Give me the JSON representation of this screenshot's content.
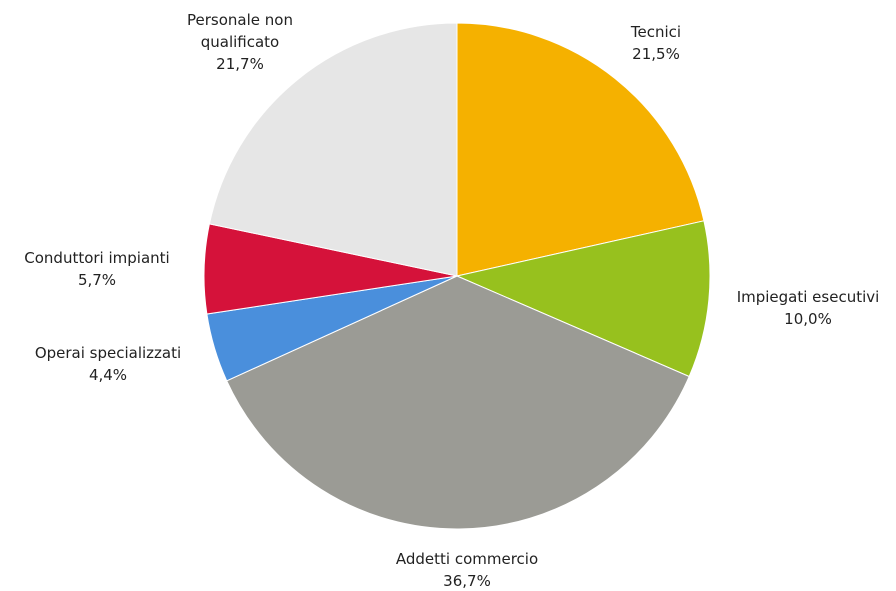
{
  "chart_data": {
    "type": "pie",
    "start_angle": "12-o-clock",
    "direction": "clockwise",
    "slices": [
      {
        "label": "Tecnici",
        "value_label": "21,5%",
        "value": 21.5,
        "color": "#f5b100"
      },
      {
        "label": "Impiegati esecutivi",
        "value_label": "10,0%",
        "value": 10.0,
        "color": "#97c11e"
      },
      {
        "label": "Addetti commercio",
        "value_label": "36,7%",
        "value": 36.7,
        "color": "#9b9b95"
      },
      {
        "label": "Operai specializzati",
        "value_label": "4,4%",
        "value": 4.4,
        "color": "#4a8fdc"
      },
      {
        "label": "Conduttori impianti",
        "value_label": "5,7%",
        "value": 5.7,
        "color": "#d5123a"
      },
      {
        "label": "Personale non qualificato",
        "label_lines": [
          "Personale non",
          "qualificato"
        ],
        "value_label": "21,7%",
        "value": 21.7,
        "color": "#e6e6e6"
      }
    ]
  }
}
